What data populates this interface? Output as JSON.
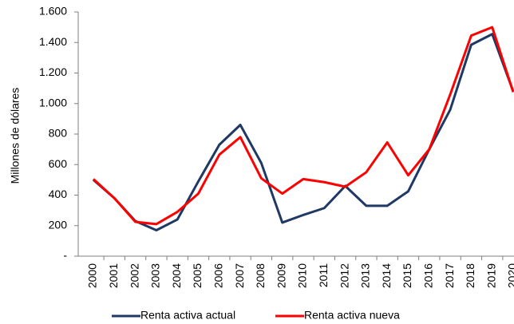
{
  "chart_data": {
    "type": "line",
    "y_label": "Millones de dólares",
    "categories": [
      "2000",
      "2001",
      "2002",
      "2003",
      "2004",
      "2005",
      "2006",
      "2007",
      "2008",
      "2009",
      "2010",
      "2011",
      "2012",
      "2013",
      "2014",
      "2015",
      "2016",
      "2017",
      "2018",
      "2019",
      "2020"
    ],
    "series": [
      {
        "name": "Renta activa actual",
        "color": "#1f3864",
        "values": [
          500,
          380,
          230,
          170,
          240,
          490,
          730,
          860,
          610,
          220,
          270,
          315,
          460,
          330,
          330,
          425,
          700,
          960,
          1385,
          1455,
          1080
        ]
      },
      {
        "name": "Renta activa nueva",
        "color": "#ff0000",
        "values": [
          505,
          380,
          225,
          210,
          290,
          410,
          665,
          780,
          510,
          410,
          505,
          485,
          455,
          550,
          745,
          530,
          700,
          1060,
          1445,
          1500,
          1075
        ]
      }
    ],
    "ylim": [
      0,
      1600
    ],
    "yticks": [
      {
        "value": 0,
        "label": "-"
      },
      200,
      400,
      600,
      800,
      {
        "value": 1000,
        "label": "1.000"
      },
      {
        "value": 1200,
        "label": "1.200"
      },
      {
        "value": 1400,
        "label": "1.400"
      },
      {
        "value": 1600,
        "label": "1.600"
      }
    ],
    "grid": false,
    "legend": "bottom"
  }
}
